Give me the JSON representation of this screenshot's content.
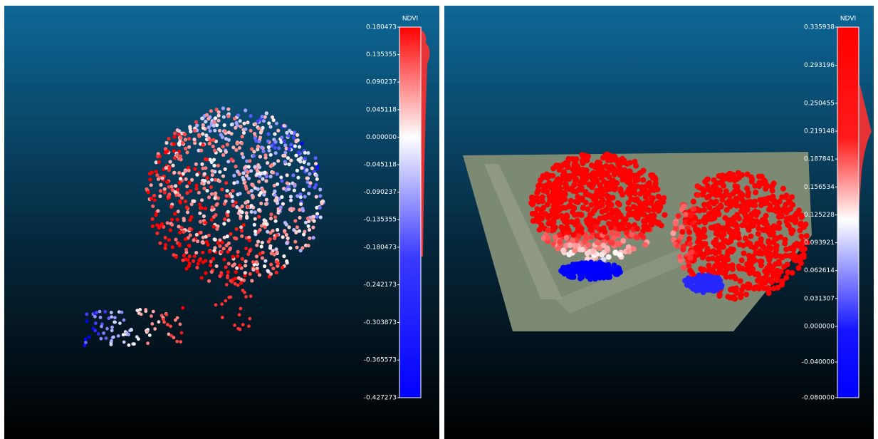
{
  "panels": [
    {
      "colorbar": {
        "title": "NDVI",
        "range": [
          -0.427273,
          0.180473
        ],
        "ticks": [
          0.180473,
          0.135355,
          0.090237,
          0.045118,
          {
            "value": 0,
            "label": "0.000000"
          },
          -0.045118,
          -0.090237,
          -0.135355,
          -0.180473,
          -0.242173,
          -0.303873,
          -0.365573,
          -0.427273
        ]
      }
    },
    {
      "colorbar": {
        "title": "NDVI",
        "range": [
          -0.08,
          0.335938
        ],
        "ticks": [
          0.335938,
          0.293196,
          0.250455,
          0.219148,
          0.187841,
          0.156534,
          0.125228,
          0.093921,
          0.062614,
          0.031307,
          {
            "value": 0,
            "label": "0.000000"
          },
          {
            "value": -0.04,
            "label": "-0.040000"
          },
          {
            "value": -0.08,
            "label": "-0.080000"
          }
        ]
      }
    }
  ]
}
